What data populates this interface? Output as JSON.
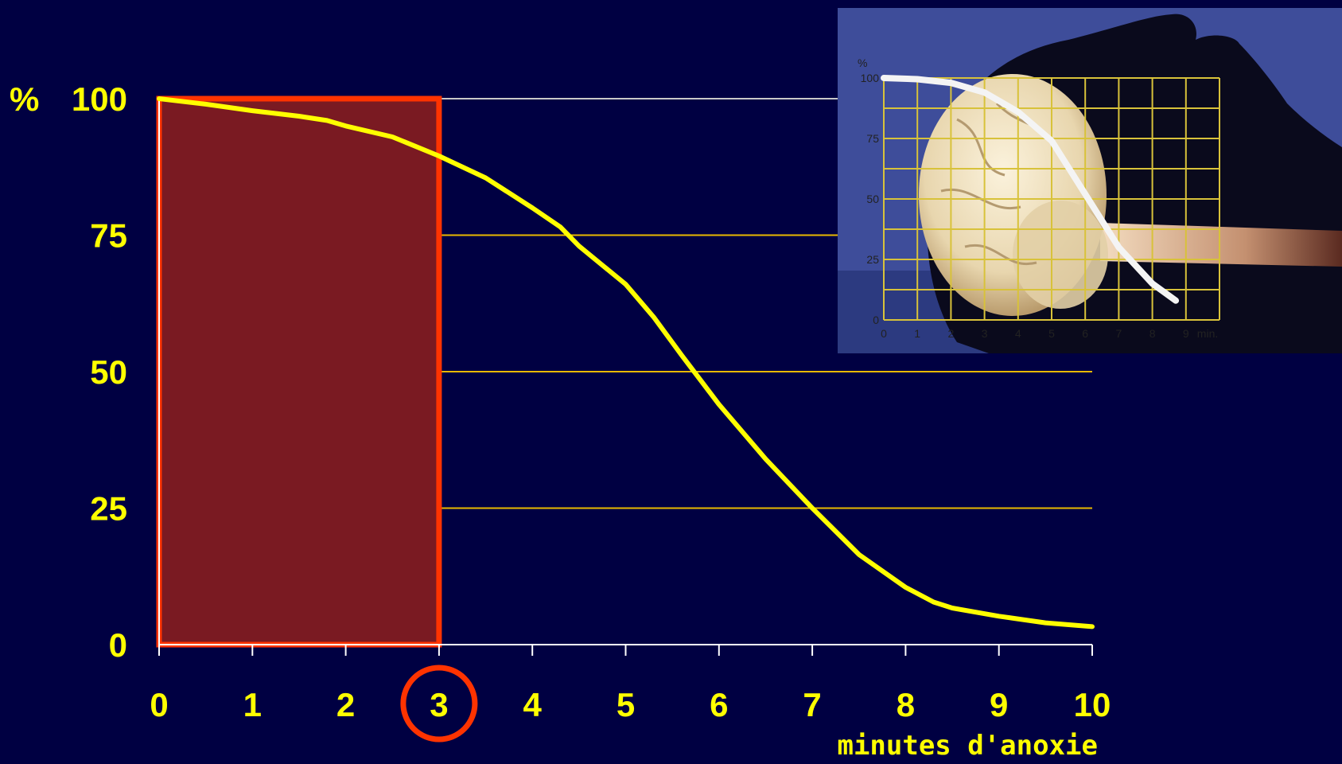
{
  "chart_data": {
    "type": "line",
    "title": "",
    "ylabel": "",
    "y_prefix": "%",
    "xlabel": "minutes d'anoxie",
    "xlim": [
      0,
      10
    ],
    "ylim": [
      0,
      100
    ],
    "x_ticks": [
      0,
      1,
      2,
      3,
      4,
      5,
      6,
      7,
      8,
      9,
      10
    ],
    "y_ticks": [
      0,
      25,
      50,
      75,
      100
    ],
    "grid": true,
    "series": [
      {
        "x": [
          0,
          0.5,
          1,
          1.5,
          1.8,
          2,
          2.5,
          3,
          3.5,
          4,
          4.3,
          4.5,
          5,
          5.3,
          5.6,
          6,
          6.5,
          7,
          7.5,
          8,
          8.3,
          8.5,
          9,
          9.5,
          10
        ],
        "y": [
          100,
          99,
          97.8,
          96.8,
          96,
          95,
          93,
          89.5,
          85.5,
          80,
          76.5,
          73,
          66,
          60,
          53,
          44,
          34,
          25,
          16.5,
          10.5,
          7.8,
          6.7,
          5.2,
          4,
          3.3
        ]
      }
    ],
    "highlight_region": {
      "x_from": 0,
      "x_to": 3
    },
    "highlight_tick": 3
  },
  "colors": {
    "background": "#000042",
    "curve": "#ffff00",
    "grid": "#e8b800",
    "text": "#ffff00",
    "highlight_fill": "#7a1a22",
    "highlight_stroke": "#ff3300"
  },
  "inset": {
    "y_unit": "%",
    "y_ticks": [
      "100",
      "75",
      "50",
      "25",
      "0"
    ],
    "x_ticks": [
      "0",
      "1",
      "2",
      "3",
      "4",
      "5",
      "6",
      "7",
      "8",
      "9"
    ],
    "x_unit": "min.",
    "series": {
      "x": [
        0,
        1,
        2,
        3,
        4,
        5,
        6,
        7,
        8,
        8.7
      ],
      "y": [
        100,
        99.5,
        98,
        94,
        86,
        74,
        52,
        30,
        15,
        8
      ]
    }
  }
}
